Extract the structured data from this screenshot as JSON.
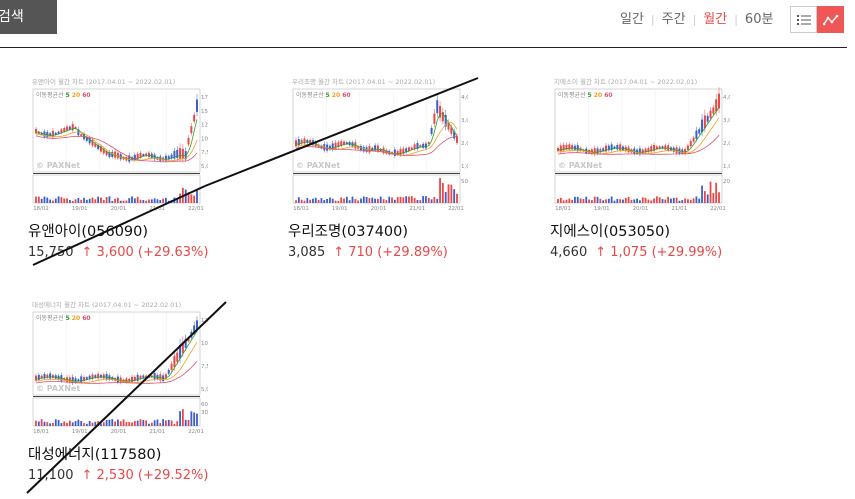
{
  "toolbar": {
    "search_label": "검색",
    "periods": [
      "일간",
      "주간",
      "월간",
      "60분"
    ],
    "active_period": "월간"
  },
  "stocks": [
    {
      "name": "유앤아이(056090)",
      "price": "15,750",
      "change": "↑ 3,600 (+29.63%)",
      "chart_title": "유앤아이 월간 차트 (2017.04.01 ~ 2022.02.01)",
      "ma_label": "이동평균선",
      "ma": [
        "5",
        "20",
        "60"
      ],
      "yticks": [
        "17,500",
        "15,000",
        "12,500",
        "10,000",
        "7,500",
        "5,000"
      ],
      "vol_ticks": [],
      "xticks": [
        "18/01",
        "19/01",
        "20/01",
        "21/01",
        "22/01"
      ]
    },
    {
      "name": "우리조명(037400)",
      "price": "3,085",
      "change": "↑ 710 (+29.89%)",
      "chart_title": "우리조명 월간 차트 (2017.04.01 ~ 2022.02.01)",
      "ma_label": "이동평균선",
      "ma": [
        "5",
        "20",
        "60"
      ],
      "yticks": [
        "4,000",
        "3,000",
        "2,000",
        "1,000"
      ],
      "vol_ticks": [
        "50M"
      ],
      "xticks": [
        "18/01",
        "19/01",
        "20/01",
        "21/01",
        "22/01"
      ]
    },
    {
      "name": "지에스이(053050)",
      "price": "4,660",
      "change": "↑ 1,075 (+29.99%)",
      "chart_title": "지에스이 월간 차트 (2017.04.01 ~ 2022.02.01)",
      "ma_label": "이동평균선",
      "ma": [
        "5",
        "20",
        "60"
      ],
      "yticks": [
        "4,000",
        "3,000",
        "2,000",
        "1,000"
      ],
      "vol_ticks": [
        "200M"
      ],
      "xticks": [
        "18/01",
        "19/01",
        "20/01",
        "21/01",
        "22/01"
      ]
    },
    {
      "name": "대성에너지(117580)",
      "price": "11,100",
      "change": "↑ 2,530 (+29.52%)",
      "chart_title": "대성에너지 월간 차트 (2017.04.01 ~ 2022.02.01)",
      "ma_label": "이동평균선",
      "ma": [
        "5",
        "20",
        "60"
      ],
      "yticks": [
        "12,500",
        "10,000",
        "7,500",
        "5,000"
      ],
      "vol_ticks": [
        "60M",
        "30M"
      ],
      "xticks": [
        "18/01",
        "19/01",
        "20/01",
        "21/01",
        "22/01"
      ]
    }
  ],
  "watermark": "PAXNet",
  "colors": {
    "up": "#e94848",
    "down": "#3a5fcd",
    "ma5": "#2aa12a",
    "ma20": "#f0a020",
    "ma60": "#e0506a",
    "accent": "#e94848"
  }
}
